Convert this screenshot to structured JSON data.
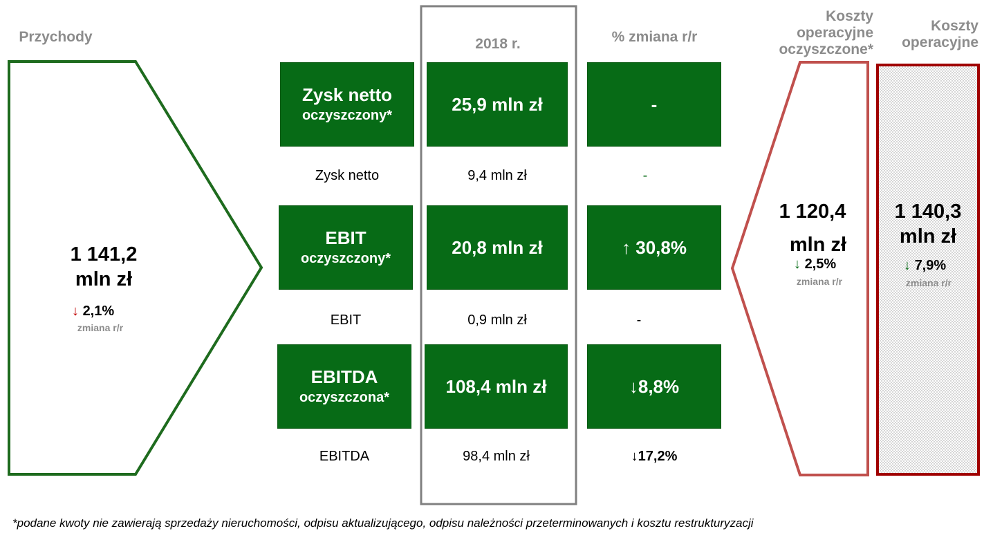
{
  "colors": {
    "green": "#076b16",
    "red_dark": "#a00000",
    "red_light": "#c0504d",
    "gray": "#8c8c8c"
  },
  "revenue": {
    "label": "Przychody",
    "value_line1": "1 141,2",
    "value_line2": "mln zł",
    "change": "2,1%",
    "change_label": "zmiana r/r"
  },
  "columns": {
    "year": "2018 r.",
    "change": "% zmiana r/r"
  },
  "metrics": [
    {
      "name_line1": "Zysk netto",
      "name_line2": "oczyszczony*",
      "value": "25,9 mln zł",
      "change": "-"
    },
    {
      "name_line1": "EBIT",
      "name_line2": "oczyszczony*",
      "value": "20,8 mln zł",
      "change": "30,8%"
    },
    {
      "name_line1": "EBITDA",
      "name_line2": "oczyszczona*",
      "value": "108,4 mln zł",
      "change": "8,8%"
    }
  ],
  "plain_rows": [
    {
      "name": "Zysk netto",
      "value": "9,4 mln zł",
      "change": "-"
    },
    {
      "name": "EBIT",
      "value": "0,9 mln zł",
      "change": "-"
    },
    {
      "name": "EBITDA",
      "value": "98,4 mln zł",
      "change": "17,2%"
    }
  ],
  "costs_clean": {
    "label_line1": "Koszty",
    "label_line2": "operacyjne",
    "label_line3": "oczyszczone*",
    "value_line1": "1 120,4",
    "value_line2": "mln zł",
    "change": "2,5%",
    "change_label": "zmiana r/r"
  },
  "costs": {
    "label_line1": "Koszty",
    "label_line2": "operacyjne",
    "value_line1": "1 140,3",
    "value_line2": "mln zł",
    "change": "7,9%",
    "change_label": "zmiana r/r"
  },
  "footnote": "*podane kwoty nie zawierają sprzedaży nieruchomości, odpisu aktualizującego, odpisu należności przeterminowanych i kosztu restrukturyzacji",
  "icons": {
    "up": "arrow-up-icon",
    "down": "arrow-down-icon"
  }
}
